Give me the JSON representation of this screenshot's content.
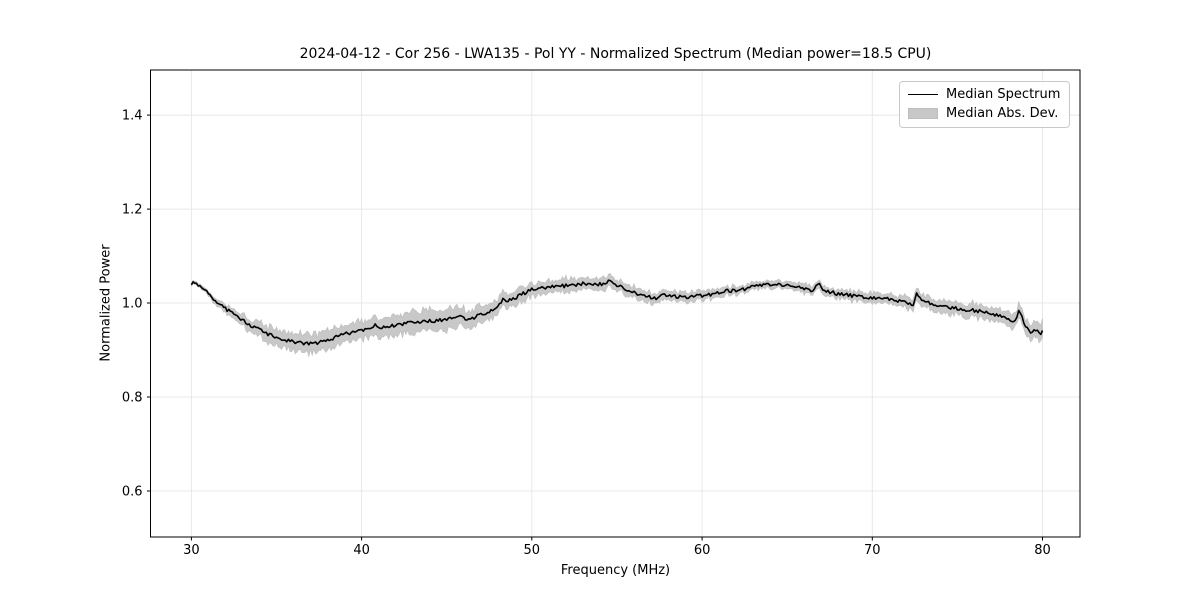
{
  "chart_data": {
    "type": "line",
    "title": "2024-04-12 - Cor 256 - LWA135 - Pol YY - Normalized Spectrum (Median power=18.5 CPU)",
    "xlabel": "Frequency (MHz)",
    "ylabel": "Normalized Power",
    "xlim": [
      27.6,
      82.2
    ],
    "ylim": [
      0.502,
      1.496
    ],
    "xticks": [
      30,
      40,
      50,
      60,
      70,
      80
    ],
    "yticks": [
      0.6,
      0.8,
      1.0,
      1.2,
      1.4
    ],
    "grid": true,
    "legend_position": "upper right",
    "legend": [
      {
        "label": "Median Spectrum",
        "marker": "line",
        "color": "#000000"
      },
      {
        "label": "Median Abs. Dev.",
        "marker": "patch",
        "color": "#c8c8c8"
      }
    ],
    "colors": {
      "line": "#000000",
      "band": "#c8c8c8",
      "band_edge": "#bfbfbf",
      "grid": "#e8e8e8",
      "frame": "#000000",
      "text": "#000000",
      "background": "#ffffff"
    },
    "noise": {
      "seed": 9,
      "amplitude": 0.0038,
      "step": 0.1,
      "band_edge_jitter": 0.35
    },
    "anchors": {
      "freq": [
        30.0,
        30.2,
        30.4,
        30.7,
        31.0,
        31.3,
        31.6,
        32.0,
        32.5,
        33.0,
        33.5,
        34.0,
        34.5,
        35.0,
        35.5,
        36.0,
        36.5,
        37.0,
        37.5,
        38.0,
        38.5,
        39.0,
        39.5,
        40.0,
        40.5,
        40.8,
        41.2,
        41.5,
        42.0,
        42.5,
        43.0,
        43.5,
        44.0,
        44.5,
        45.0,
        45.5,
        46.0,
        46.2,
        46.5,
        47.0,
        47.5,
        48.0,
        48.3,
        48.6,
        49.0,
        49.5,
        50.0,
        50.5,
        51.0,
        51.5,
        52.0,
        52.5,
        53.0,
        53.5,
        54.0,
        54.6,
        55.0,
        55.5,
        56.0,
        56.5,
        57.0,
        57.4,
        57.7,
        58.0,
        58.5,
        59.0,
        59.5,
        60.0,
        60.5,
        61.0,
        61.5,
        62.0,
        62.5,
        63.0,
        63.5,
        64.0,
        64.5,
        65.0,
        65.5,
        66.0,
        66.5,
        66.8,
        67.1,
        67.5,
        68.0,
        68.5,
        69.0,
        69.5,
        70.0,
        70.5,
        71.0,
        71.5,
        72.0,
        72.4,
        72.6,
        73.0,
        73.5,
        74.0,
        74.5,
        75.0,
        75.5,
        76.0,
        76.5,
        77.0,
        77.5,
        78.0,
        78.4,
        78.6,
        79.0,
        79.3,
        79.6,
        79.8,
        80.0
      ],
      "median": [
        1.041,
        1.044,
        1.038,
        1.03,
        1.02,
        1.008,
        0.998,
        0.988,
        0.975,
        0.963,
        0.952,
        0.943,
        0.934,
        0.927,
        0.921,
        0.917,
        0.914,
        0.913,
        0.915,
        0.921,
        0.928,
        0.934,
        0.938,
        0.941,
        0.947,
        0.953,
        0.946,
        0.95,
        0.953,
        0.956,
        0.958,
        0.96,
        0.962,
        0.963,
        0.966,
        0.969,
        0.971,
        0.962,
        0.968,
        0.975,
        0.982,
        0.99,
        1.008,
        1.005,
        1.011,
        1.02,
        1.028,
        1.031,
        1.033,
        1.035,
        1.037,
        1.038,
        1.041,
        1.042,
        1.04,
        1.046,
        1.038,
        1.03,
        1.023,
        1.015,
        1.012,
        1.009,
        1.017,
        1.016,
        1.014,
        1.012,
        1.014,
        1.016,
        1.018,
        1.022,
        1.026,
        1.025,
        1.029,
        1.036,
        1.038,
        1.04,
        1.04,
        1.037,
        1.034,
        1.031,
        1.026,
        1.042,
        1.03,
        1.024,
        1.019,
        1.017,
        1.015,
        1.013,
        1.01,
        1.011,
        1.008,
        1.005,
        1.001,
        0.997,
        1.022,
        1.005,
        0.998,
        0.994,
        0.991,
        0.988,
        0.986,
        0.984,
        0.981,
        0.977,
        0.973,
        0.967,
        0.96,
        0.985,
        0.951,
        0.938,
        0.943,
        0.934,
        0.939
      ],
      "mad": [
        0.003,
        0.003,
        0.003,
        0.004,
        0.005,
        0.006,
        0.007,
        0.008,
        0.01,
        0.012,
        0.014,
        0.015,
        0.016,
        0.017,
        0.018,
        0.019,
        0.02,
        0.02,
        0.02,
        0.02,
        0.019,
        0.019,
        0.019,
        0.019,
        0.019,
        0.019,
        0.02,
        0.02,
        0.021,
        0.021,
        0.022,
        0.022,
        0.022,
        0.022,
        0.021,
        0.021,
        0.02,
        0.02,
        0.019,
        0.018,
        0.017,
        0.016,
        0.015,
        0.015,
        0.015,
        0.015,
        0.014,
        0.014,
        0.014,
        0.014,
        0.014,
        0.014,
        0.013,
        0.013,
        0.013,
        0.013,
        0.012,
        0.012,
        0.012,
        0.012,
        0.011,
        0.011,
        0.011,
        0.011,
        0.01,
        0.01,
        0.01,
        0.01,
        0.009,
        0.009,
        0.009,
        0.009,
        0.008,
        0.008,
        0.008,
        0.008,
        0.008,
        0.008,
        0.008,
        0.009,
        0.009,
        0.009,
        0.009,
        0.009,
        0.009,
        0.009,
        0.01,
        0.01,
        0.01,
        0.01,
        0.011,
        0.011,
        0.012,
        0.012,
        0.012,
        0.012,
        0.012,
        0.013,
        0.013,
        0.013,
        0.014,
        0.014,
        0.014,
        0.014,
        0.014,
        0.015,
        0.015,
        0.016,
        0.016,
        0.017,
        0.018,
        0.019,
        0.02
      ]
    }
  }
}
